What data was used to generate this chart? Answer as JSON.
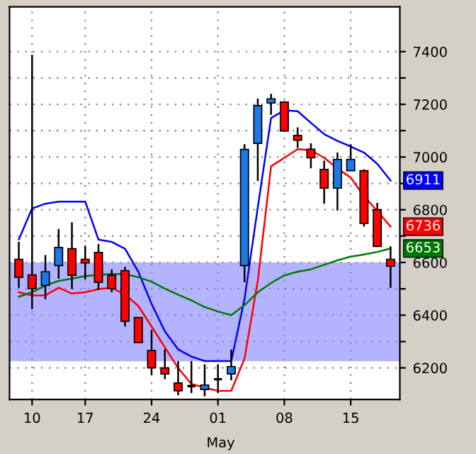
{
  "chart_data": {
    "type": "candlestick",
    "categories": [
      null,
      "10",
      null,
      null,
      null,
      "17",
      null,
      null,
      null,
      null,
      "24",
      null,
      null,
      null,
      null,
      "01",
      null,
      null,
      null,
      null,
      "08",
      null,
      null,
      null,
      null,
      "15",
      null,
      null,
      null
    ],
    "ohlc": [
      [
        6612,
        6678,
        6504,
        6544
      ],
      [
        6553,
        7388,
        6423,
        6501
      ],
      [
        6513,
        6628,
        6461,
        6565
      ],
      [
        6588,
        6727,
        6539,
        6657
      ],
      [
        6652,
        6753,
        6499,
        6551
      ],
      [
        6612,
        6664,
        6536,
        6598
      ],
      [
        6638,
        6670,
        6496,
        6525
      ],
      [
        6551,
        6574,
        6487,
        6501
      ],
      [
        6569,
        6583,
        6357,
        6377
      ],
      [
        6391,
        6391,
        6296,
        6296
      ],
      [
        6266,
        6344,
        6174,
        6200
      ],
      [
        6200,
        6270,
        6157,
        6177
      ],
      [
        6143,
        6226,
        6096,
        6113
      ],
      [
        6131,
        6226,
        6104,
        6131
      ],
      [
        6118,
        6214,
        6092,
        6135
      ],
      [
        6157,
        6214,
        6104,
        6157
      ],
      [
        6177,
        6270,
        6153,
        6205
      ],
      [
        6588,
        7049,
        6525,
        7029
      ],
      [
        7052,
        7222,
        6909,
        7195
      ],
      [
        7205,
        7240,
        7160,
        7221
      ],
      [
        7209,
        7212,
        7096,
        7099
      ],
      [
        7082,
        7113,
        7035,
        7064
      ],
      [
        7030,
        7052,
        6957,
        6997
      ],
      [
        6953,
        6986,
        6823,
        6882
      ],
      [
        6882,
        7017,
        6797,
        6991
      ],
      [
        6948,
        7049,
        6948,
        6991
      ],
      [
        6948,
        6953,
        6736,
        6748
      ],
      [
        6800,
        6826,
        6661,
        6661
      ],
      [
        6612,
        6661,
        6504,
        6586
      ]
    ],
    "colors": [
      "#ff0000",
      "#ff0000",
      "#1e78e6",
      "#1e78e6",
      "#ff0000",
      "#ff0000",
      "#ff0000",
      "#ff0000",
      "#ff0000",
      "#ff0000",
      "#ff0000",
      "#ff0000",
      "#ff0000",
      "#000000",
      "#1e78e6",
      "#000000",
      "#1e78e6",
      "#1e78e6",
      "#1e78e6",
      "#1e78e6",
      "#ff0000",
      "#ff0000",
      "#ff0000",
      "#ff0000",
      "#1e78e6",
      "#1e78e6",
      "#ff0000",
      "#ff0000",
      "#ff0000"
    ],
    "series": [
      {
        "type": "line",
        "color": "#0000ff",
        "values": [
          6687,
          6805,
          6823,
          6831,
          6831,
          6831,
          6687,
          6678,
          6652,
          6565,
          6443,
          6339,
          6270,
          6243,
          6226,
          6226,
          6226,
          6461,
          6809,
          7148,
          7177,
          7174,
          7130,
          7087,
          7061,
          7040,
          7017,
          6974,
          6911
        ],
        "value_labels": [
          null,
          null,
          null,
          null,
          null,
          null,
          null,
          null,
          null,
          null,
          null,
          null,
          null,
          null,
          null,
          null,
          null,
          null,
          null,
          null,
          null,
          null,
          null,
          null,
          null,
          null,
          null,
          null,
          "6911"
        ]
      },
      {
        "type": "line",
        "color": "#ff0000",
        "values": [
          6487,
          6475,
          6475,
          6504,
          6482,
          6487,
          6499,
          6504,
          6478,
          6435,
          6357,
          6278,
          6200,
          6139,
          6125,
          6113,
          6113,
          6235,
          6530,
          6965,
          6997,
          7030,
          7026,
          6997,
          6957,
          6922,
          6852,
          6795,
          6736
        ],
        "value_labels": [
          null,
          null,
          null,
          null,
          null,
          null,
          null,
          null,
          null,
          null,
          null,
          null,
          null,
          null,
          null,
          null,
          null,
          null,
          null,
          null,
          null,
          null,
          null,
          null,
          null,
          null,
          null,
          null,
          "6736"
        ]
      },
      {
        "type": "line",
        "color": "#007800",
        "values": [
          6470,
          6487,
          6513,
          6530,
          6539,
          6548,
          6553,
          6556,
          6556,
          6544,
          6527,
          6501,
          6478,
          6456,
          6431,
          6414,
          6400,
          6438,
          6487,
          6522,
          6551,
          6565,
          6574,
          6591,
          6608,
          6622,
          6630,
          6640,
          6653
        ],
        "value_labels": [
          null,
          null,
          null,
          null,
          null,
          null,
          null,
          null,
          null,
          null,
          null,
          null,
          null,
          null,
          null,
          null,
          null,
          null,
          null,
          null,
          null,
          null,
          null,
          null,
          null,
          null,
          null,
          null,
          "6653"
        ]
      }
    ],
    "ylim": [
      6080,
      7570
    ],
    "yticks": [
      6200,
      {
        "value": 6300,
        "label": null
      },
      6400,
      {
        "value": 6500,
        "label": null
      },
      6600,
      {
        "value": 6700,
        "label": null
      },
      6800,
      {
        "value": 6900,
        "label": null
      },
      7000,
      {
        "value": 7100,
        "label": null
      },
      7200,
      {
        "value": 7300,
        "label": null
      },
      7400
    ],
    "bands": [
      {
        "axis": "y",
        "from": 6225,
        "to": 6600,
        "color": "#8080ff"
      }
    ],
    "annotations": [
      "May"
    ],
    "grid": true
  }
}
